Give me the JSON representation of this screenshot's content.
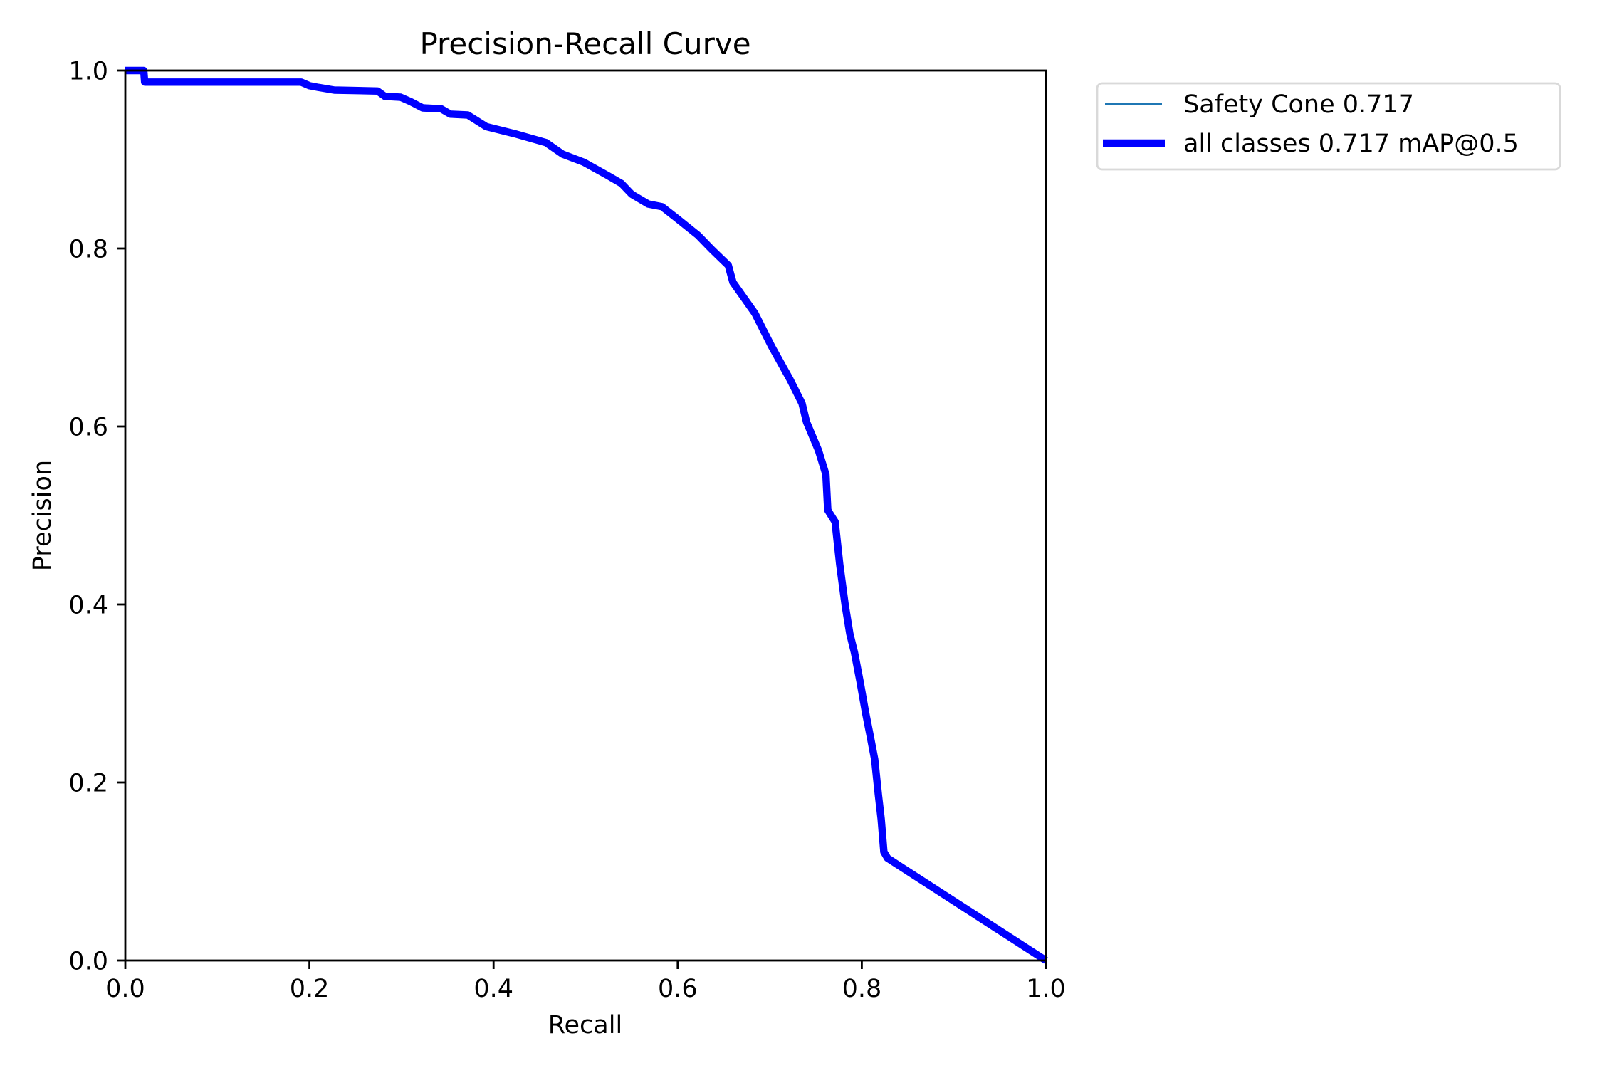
{
  "chart_data": {
    "type": "line",
    "title": "Precision-Recall Curve",
    "xlabel": "Recall",
    "ylabel": "Precision",
    "xlim": [
      0.0,
      1.0
    ],
    "ylim": [
      0.0,
      1.0
    ],
    "xticks": [
      "0.0",
      "0.2",
      "0.4",
      "0.6",
      "0.8",
      "1.0"
    ],
    "yticks": [
      "0.0",
      "0.2",
      "0.4",
      "0.6",
      "0.8",
      "1.0"
    ],
    "grid": false,
    "legend_position": "outside upper right",
    "legend": [
      {
        "label": "Safety Cone 0.717",
        "color": "#1f77b4",
        "linewidth": "thin"
      },
      {
        "label": "all classes 0.717 mAP@0.5",
        "color": "#0000ff",
        "linewidth": "thick"
      }
    ],
    "series": [
      {
        "name": "all classes 0.717 mAP@0.5",
        "color": "#0000ff",
        "x": [
          0.0,
          0.02,
          0.021,
          0.191,
          0.2,
          0.21,
          0.227,
          0.274,
          0.282,
          0.299,
          0.31,
          0.323,
          0.343,
          0.353,
          0.372,
          0.392,
          0.423,
          0.457,
          0.475,
          0.498,
          0.524,
          0.539,
          0.55,
          0.568,
          0.583,
          0.599,
          0.622,
          0.637,
          0.655,
          0.66,
          0.684,
          0.702,
          0.722,
          0.735,
          0.74,
          0.753,
          0.761,
          0.763,
          0.771,
          0.776,
          0.782,
          0.787,
          0.792,
          0.798,
          0.804,
          0.809,
          0.814,
          0.818,
          0.821,
          0.824,
          0.828,
          1.0
        ],
        "y": [
          1.0,
          1.0,
          0.987,
          0.987,
          0.983,
          0.981,
          0.978,
          0.977,
          0.971,
          0.97,
          0.965,
          0.958,
          0.957,
          0.951,
          0.95,
          0.937,
          0.929,
          0.919,
          0.906,
          0.897,
          0.882,
          0.873,
          0.861,
          0.85,
          0.847,
          0.834,
          0.815,
          0.799,
          0.781,
          0.762,
          0.727,
          0.69,
          0.653,
          0.626,
          0.605,
          0.573,
          0.546,
          0.506,
          0.493,
          0.445,
          0.399,
          0.367,
          0.346,
          0.314,
          0.279,
          0.253,
          0.226,
          0.186,
          0.159,
          0.122,
          0.115,
          0.0
        ]
      }
    ]
  }
}
